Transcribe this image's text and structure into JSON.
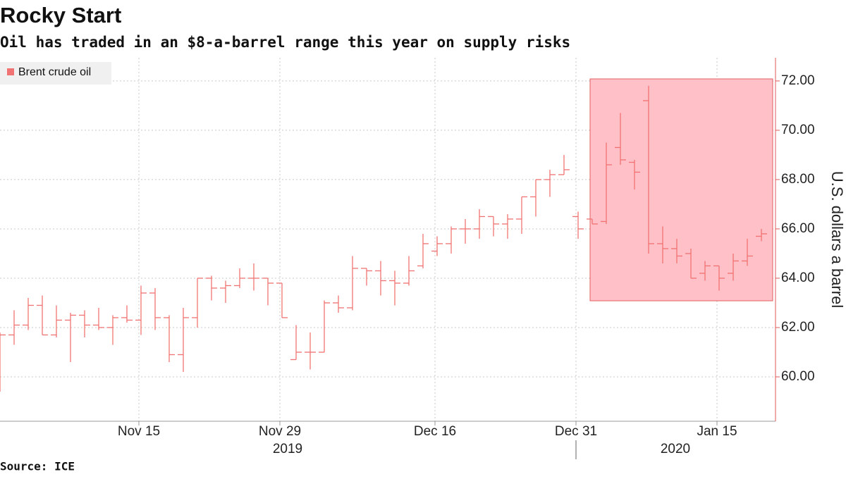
{
  "chart_data": {
    "type": "ohlc",
    "title": "Rocky Start",
    "subtitle": "Oil has traded in an $8-a-barrel range this year on supply risks",
    "y_axis_label": "U.S. dollars a barrel",
    "source": "Source: ICE",
    "x_groups": [
      "2019",
      "2020"
    ],
    "categories": [
      null,
      null,
      null,
      null,
      null,
      null,
      null,
      null,
      null,
      null,
      "Nov 15",
      null,
      null,
      null,
      null,
      null,
      null,
      null,
      null,
      null,
      "Nov 29",
      null,
      null,
      null,
      null,
      null,
      null,
      null,
      null,
      null,
      null,
      "Dec 16",
      null,
      null,
      null,
      null,
      null,
      null,
      null,
      null,
      null,
      "Dec 31",
      null,
      null,
      null,
      null,
      null,
      null,
      null,
      null,
      null,
      "Jan 15",
      null,
      null,
      null
    ],
    "series": [
      {
        "name": "Brent crude oil",
        "color": "#f07272",
        "open": [
          61.5,
          61.7,
          62.1,
          62.9,
          61.7,
          62.3,
          62.5,
          62.1,
          62.0,
          62.4,
          62.3,
          63.4,
          62.4,
          60.9,
          62.4,
          64.0,
          63.6,
          63.7,
          64.0,
          64.0,
          63.8,
          60.7,
          61.0,
          61.0,
          63.0,
          62.8,
          64.4,
          64.3,
          63.9,
          63.8,
          64.5,
          65.1,
          65.4,
          66.0,
          66.0,
          66.5,
          66.2,
          66.4,
          67.3,
          68.0,
          68.2,
          66.5,
          66.4,
          66.3,
          69.3,
          68.7,
          71.2,
          65.4,
          65.2,
          65.0,
          64.2,
          64.5,
          64.2,
          64.7,
          65.7
        ],
        "high": [
          61.8,
          62.7,
          63.2,
          63.3,
          62.9,
          62.6,
          62.7,
          62.8,
          62.5,
          62.9,
          63.7,
          63.6,
          62.5,
          62.8,
          64.0,
          64.1,
          63.9,
          64.4,
          64.6,
          64.0,
          63.8,
          62.1,
          61.8,
          63.1,
          63.3,
          64.9,
          64.4,
          64.7,
          64.3,
          64.9,
          65.8,
          65.7,
          66.1,
          66.4,
          66.8,
          66.5,
          66.6,
          67.3,
          68.0,
          68.4,
          69.0,
          66.7,
          66.4,
          69.5,
          70.7,
          68.8,
          71.8,
          66.1,
          65.6,
          65.2,
          64.7,
          64.5,
          65.0,
          65.6,
          66.0
        ],
        "low": [
          59.4,
          61.3,
          61.9,
          61.7,
          61.6,
          60.6,
          61.6,
          61.9,
          61.3,
          62.2,
          61.7,
          61.9,
          60.6,
          60.2,
          62.0,
          63.1,
          63.0,
          63.6,
          63.5,
          62.9,
          62.4,
          60.7,
          60.3,
          61.0,
          62.6,
          62.7,
          63.7,
          63.3,
          62.9,
          63.7,
          64.4,
          64.9,
          65.0,
          65.4,
          65.6,
          65.7,
          65.6,
          65.8,
          66.5,
          67.3,
          68.2,
          65.6,
          66.2,
          66.2,
          68.6,
          67.6,
          65.0,
          64.6,
          64.6,
          64.0,
          63.9,
          63.5,
          63.9,
          64.5,
          65.5
        ],
        "close": [
          61.7,
          62.1,
          62.9,
          61.7,
          62.3,
          62.5,
          62.1,
          62.0,
          62.4,
          62.3,
          63.4,
          62.4,
          60.9,
          62.4,
          64.0,
          63.6,
          63.7,
          64.0,
          64.0,
          63.8,
          62.4,
          61.0,
          61.0,
          63.0,
          62.8,
          64.4,
          64.3,
          63.9,
          63.8,
          64.3,
          65.4,
          65.4,
          66.0,
          66.0,
          66.5,
          66.2,
          66.4,
          67.3,
          68.0,
          68.2,
          68.4,
          66.0,
          66.2,
          68.6,
          68.8,
          68.3,
          65.4,
          65.2,
          64.9,
          64.0,
          64.5,
          64.0,
          64.7,
          64.9,
          65.8
        ]
      }
    ],
    "ylim": [
      58.2,
      72.94
    ],
    "yticks": [
      {
        "value": 60,
        "label": "60.00"
      },
      {
        "value": 62,
        "label": "62.00"
      },
      {
        "value": 64,
        "label": "64.00"
      },
      {
        "value": 66,
        "label": "66.00"
      },
      {
        "value": 68,
        "label": "68.00"
      },
      {
        "value": 70,
        "label": "70.00"
      },
      {
        "value": 72,
        "label": "72.00"
      }
    ],
    "grid": true,
    "legend": "top-left"
  }
}
